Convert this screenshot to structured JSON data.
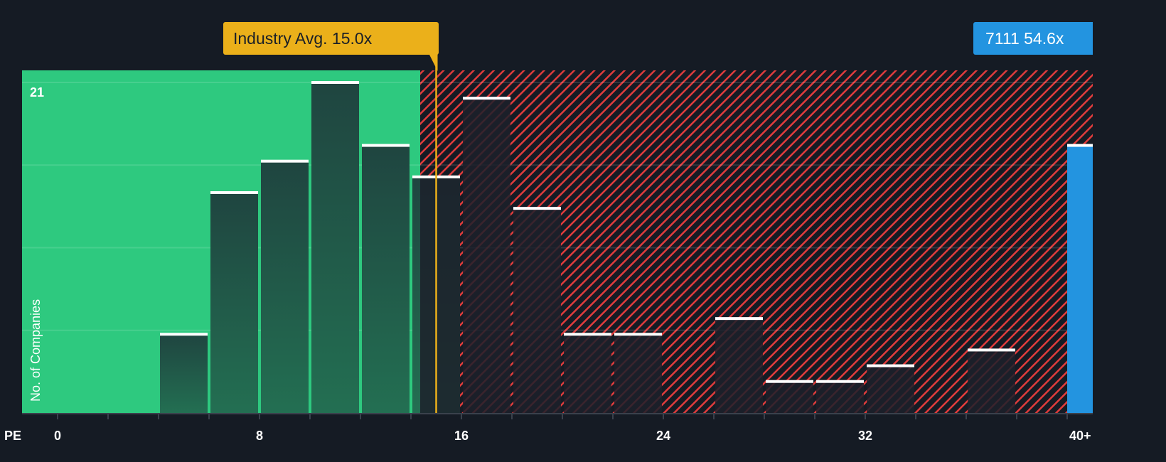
{
  "chart_data": {
    "type": "bar",
    "title": "",
    "xlabel": "PE",
    "ylabel": "No. of Companies",
    "ymax_label": "21",
    "ylim": [
      0,
      21
    ],
    "xlim": [
      0,
      40
    ],
    "x_ticks": [
      "0",
      "8",
      "16",
      "24",
      "32",
      "40+"
    ],
    "bins": [
      {
        "from": 4,
        "to": 6,
        "value": 5
      },
      {
        "from": 6,
        "to": 8,
        "value": 14
      },
      {
        "from": 8,
        "to": 10,
        "value": 16
      },
      {
        "from": 10,
        "to": 12,
        "value": 21
      },
      {
        "from": 12,
        "to": 14,
        "value": 17
      },
      {
        "from": 14,
        "to": 16,
        "value": 15
      },
      {
        "from": 16,
        "to": 18,
        "value": 20
      },
      {
        "from": 18,
        "to": 20,
        "value": 13
      },
      {
        "from": 20,
        "to": 22,
        "value": 5
      },
      {
        "from": 22,
        "to": 24,
        "value": 5
      },
      {
        "from": 26,
        "to": 28,
        "value": 6
      },
      {
        "from": 28,
        "to": 30,
        "value": 2
      },
      {
        "from": 30,
        "to": 32,
        "value": 2
      },
      {
        "from": 32,
        "to": 34,
        "value": 3
      },
      {
        "from": 36,
        "to": 38,
        "value": 4
      }
    ],
    "overflow_bin": {
      "label": "40+",
      "value": 17
    },
    "industry_avg": {
      "label": "Industry Avg. 15.0x",
      "value": 15.0
    },
    "company": {
      "label": "7111 54.6x",
      "value": 54.6
    },
    "colors": {
      "background": "#151b24",
      "fair": "#2ec97f",
      "over": "#e03c3c",
      "avg": "#ebb01a",
      "company": "#2394e0"
    }
  }
}
